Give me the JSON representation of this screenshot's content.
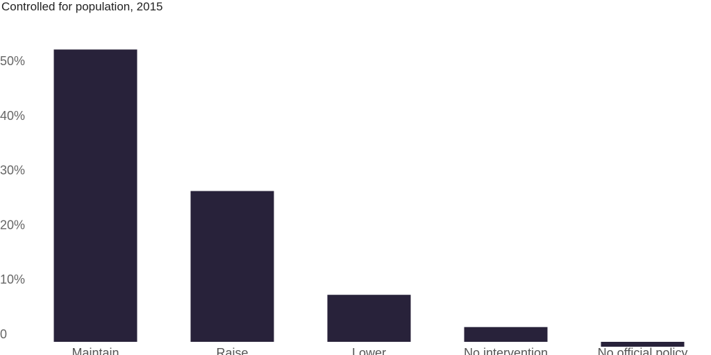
{
  "chart_data": {
    "type": "bar",
    "subtitle": "Controlled for population, 2015",
    "categories": [
      "Maintain",
      "Raise",
      "Lower",
      "No intervention",
      "No official policy"
    ],
    "values": [
      53.5,
      27.6,
      8.6,
      2.7,
      -0.9
    ],
    "ylim": [
      0,
      55
    ],
    "yticks": [
      0,
      10,
      20,
      30,
      40,
      50
    ],
    "ytick_labels": [
      "0",
      "10%",
      "20%",
      "30%",
      "40%",
      "50%"
    ],
    "bar_color": "#28223a",
    "grid": false,
    "legend": "none",
    "xlabel": "",
    "ylabel": ""
  }
}
